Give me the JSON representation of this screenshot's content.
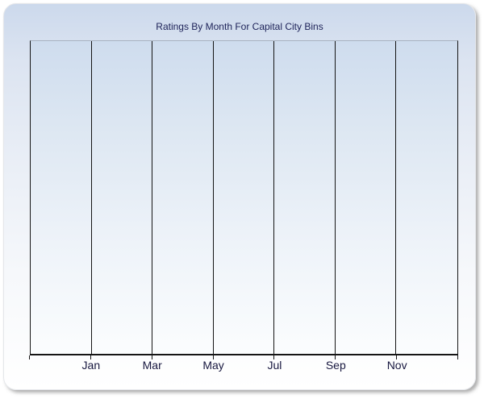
{
  "chart_data": {
    "type": "line",
    "title": "Ratings By Month For Capital City Bins",
    "xlabel": "",
    "ylabel": "",
    "x_tick_labels": [
      "Jan",
      "Mar",
      "May",
      "Jul",
      "Sep",
      "Nov"
    ],
    "y_tick_labels": [],
    "series": [],
    "grid": "vertical gridlines only, 6 internal lines at 1/7-width intervals",
    "legend": "none",
    "notes": "plot area is empty: no data series, markers or y-axis values are rendered"
  },
  "colors": {
    "panel_top": "#ccd9ec",
    "panel_bottom": "#ffffff",
    "plot_top": "#cedcee",
    "plot_bottom": "#fbfdfe",
    "plot_top_border": "#a8b1c1",
    "axis": "#151515",
    "gridline": "#151515",
    "title_text": "#1c2158",
    "label_text": "#17173f"
  }
}
